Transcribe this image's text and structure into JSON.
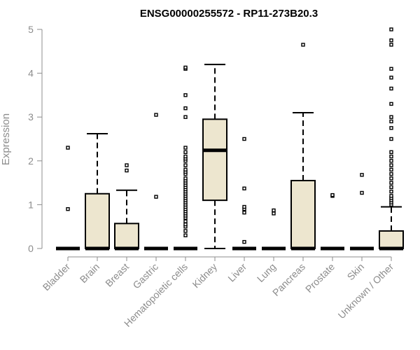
{
  "chart_data": {
    "type": "boxplot",
    "title": "ENSG00000255572 - RP11-273B20.3",
    "xlabel": "",
    "ylabel": "Expression",
    "ylim": [
      0,
      5
    ],
    "yticks": [
      "0",
      "1",
      "2",
      "3",
      "4",
      "5"
    ],
    "grid": false,
    "box_fill": "#ede6cf",
    "box_stroke": "#000000",
    "axis_color": "#8c8c8c",
    "categories": [
      "Bladder",
      "Brain",
      "Breast",
      "Gastric",
      "Hematopoietic cells",
      "Kidney",
      "Liver",
      "Lung",
      "Pancreas",
      "Prostate",
      "Skin",
      "Unknown / Other"
    ],
    "series": [
      {
        "category": "Bladder",
        "min": 0,
        "q1": 0,
        "median": 0,
        "q3": 0,
        "max": 0,
        "outliers": [
          0.9,
          2.3
        ]
      },
      {
        "category": "Brain",
        "min": 0,
        "q1": 0,
        "median": 0,
        "q3": 1.25,
        "max": 2.62,
        "outliers": []
      },
      {
        "category": "Breast",
        "min": 0,
        "q1": 0,
        "median": 0,
        "q3": 0.57,
        "max": 1.33,
        "outliers": [
          1.78,
          1.9
        ]
      },
      {
        "category": "Gastric",
        "min": 0,
        "q1": 0,
        "median": 0,
        "q3": 0,
        "max": 0,
        "outliers": [
          1.18,
          3.05
        ]
      },
      {
        "category": "Hematopoietic cells",
        "min": 0,
        "q1": 0,
        "median": 0,
        "q3": 0,
        "max": 0,
        "outliers": [
          0.3,
          0.4,
          0.5,
          0.55,
          0.62,
          0.7,
          0.75,
          0.8,
          0.85,
          0.9,
          0.95,
          1.0,
          1.05,
          1.1,
          1.15,
          1.2,
          1.25,
          1.3,
          1.35,
          1.4,
          1.45,
          1.5,
          1.55,
          1.6,
          1.7,
          1.75,
          1.8,
          1.9,
          2.0,
          2.05,
          2.1,
          2.2,
          2.3,
          3.0,
          3.2,
          3.5,
          4.1,
          4.13
        ]
      },
      {
        "category": "Kidney",
        "min": 0,
        "q1": 1.1,
        "median": 2.24,
        "q3": 2.95,
        "max": 4.2,
        "outliers": []
      },
      {
        "category": "Liver",
        "min": 0,
        "q1": 0,
        "median": 0,
        "q3": 0,
        "max": 0,
        "outliers": [
          0.15,
          0.82,
          0.9,
          0.95,
          1.37,
          2.5
        ]
      },
      {
        "category": "Lung",
        "min": 0,
        "q1": 0,
        "median": 0,
        "q3": 0,
        "max": 0,
        "outliers": [
          0.8,
          0.87
        ]
      },
      {
        "category": "Pancreas",
        "min": 0,
        "q1": 0,
        "median": 0,
        "q3": 1.55,
        "max": 3.1,
        "outliers": [
          4.65
        ]
      },
      {
        "category": "Prostate",
        "min": 0,
        "q1": 0,
        "median": 0,
        "q3": 0,
        "max": 0,
        "outliers": [
          1.2,
          1.22
        ]
      },
      {
        "category": "Skin",
        "min": 0,
        "q1": 0,
        "median": 0,
        "q3": 0,
        "max": 0,
        "outliers": [
          1.27,
          1.68
        ]
      },
      {
        "category": "Unknown / Other",
        "min": 0,
        "q1": 0,
        "median": 0,
        "q3": 0.4,
        "max": 0.95,
        "outliers": [
          1.0,
          1.05,
          1.1,
          1.15,
          1.2,
          1.3,
          1.4,
          1.5,
          1.6,
          1.7,
          1.8,
          1.9,
          2.0,
          2.1,
          2.2,
          2.5,
          2.75,
          2.9,
          3.0,
          3.3,
          3.65,
          3.9,
          4.1,
          4.65,
          4.75,
          5.0
        ]
      }
    ]
  }
}
